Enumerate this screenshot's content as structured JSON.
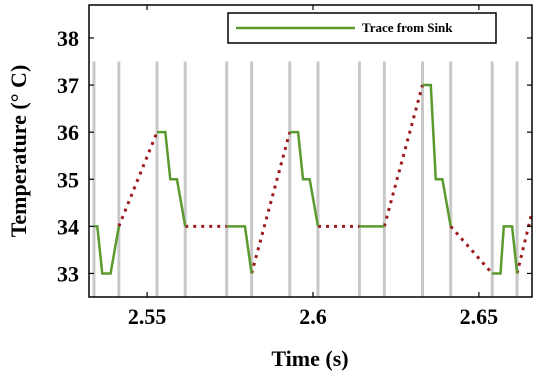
{
  "chart_data": {
    "type": "line",
    "xlabel": "Time (s)",
    "ylabel": "Temperature (° C)",
    "xlim": [
      2.5325,
      2.666
    ],
    "ylim": [
      32.5,
      38.7
    ],
    "xticks": [
      2.55,
      2.6,
      2.65
    ],
    "xtick_labels": [
      "2.55",
      "2.6",
      "2.65"
    ],
    "yticks": [
      33,
      34,
      35,
      36,
      37,
      38
    ],
    "ytick_labels": [
      "33",
      "34",
      "35",
      "36",
      "37",
      "38"
    ],
    "grid": false,
    "legend_position": "top-right",
    "event_line_color": "#c8c8c8",
    "event_lines_x": [
      2.534,
      2.5415,
      2.553,
      2.5615,
      2.574,
      2.5815,
      2.593,
      2.6015,
      2.614,
      2.6215,
      2.633,
      2.6415,
      2.654,
      2.6615
    ],
    "series": [
      {
        "name": "Trace from Sink",
        "color": "#5a9a2e",
        "style": "solid",
        "segments": [
          [
            [
              2.534,
              34
            ],
            [
              2.535,
              34
            ],
            [
              2.5365,
              33
            ],
            [
              2.539,
              33
            ],
            [
              2.5415,
              34
            ]
          ],
          [
            [
              2.553,
              36
            ],
            [
              2.5555,
              36
            ],
            [
              2.557,
              35
            ],
            [
              2.559,
              35
            ],
            [
              2.5615,
              34
            ]
          ],
          [
            [
              2.574,
              34
            ],
            [
              2.5795,
              34
            ],
            [
              2.5815,
              33
            ]
          ],
          [
            [
              2.593,
              36
            ],
            [
              2.5955,
              36
            ],
            [
              2.597,
              35
            ],
            [
              2.599,
              35
            ],
            [
              2.6015,
              34
            ]
          ],
          [
            [
              2.614,
              34
            ],
            [
              2.6215,
              34
            ]
          ],
          [
            [
              2.633,
              37
            ],
            [
              2.6355,
              37
            ],
            [
              2.637,
              35
            ],
            [
              2.639,
              35
            ],
            [
              2.6415,
              34
            ]
          ],
          [
            [
              2.654,
              33
            ],
            [
              2.6565,
              33
            ],
            [
              2.6575,
              34
            ],
            [
              2.66,
              34
            ],
            [
              2.6615,
              33
            ]
          ]
        ]
      },
      {
        "name": "",
        "color": "#9b1b1b",
        "style": "dotted",
        "segments": [
          [
            [
              2.5415,
              34
            ],
            [
              2.553,
              36
            ]
          ],
          [
            [
              2.5615,
              34
            ],
            [
              2.574,
              34
            ]
          ],
          [
            [
              2.5815,
              33
            ],
            [
              2.593,
              36
            ]
          ],
          [
            [
              2.6015,
              34
            ],
            [
              2.614,
              34
            ]
          ],
          [
            [
              2.6215,
              34
            ],
            [
              2.633,
              37
            ]
          ],
          [
            [
              2.6415,
              34
            ],
            [
              2.654,
              33
            ]
          ],
          [
            [
              2.6615,
              33
            ],
            [
              2.666,
              34.3
            ]
          ]
        ]
      }
    ]
  }
}
